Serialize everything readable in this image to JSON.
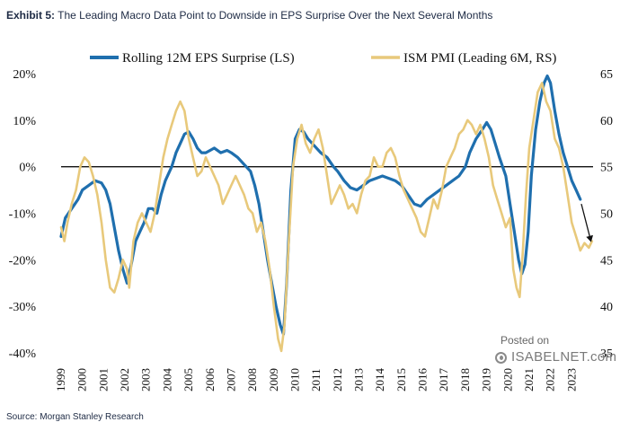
{
  "header": {
    "exhibit_label": "Exhibit 5:",
    "title": "The Leading Macro Data Point to Downside in EPS Surprise Over the Next Several Months"
  },
  "source": "Source: Morgan Stanley Research",
  "watermark": {
    "posted": "Posted on",
    "site": "ISABELNET.com"
  },
  "chart_data": {
    "type": "line",
    "title": "The Leading Macro Data Point to Downside in EPS Surprise Over the Next Several Months",
    "x_tick_labels": [
      "1999",
      "2000",
      "2001",
      "2002",
      "2003",
      "2004",
      "2005",
      "2006",
      "2007",
      "2008",
      "2009",
      "2010",
      "2011",
      "2012",
      "2013",
      "2014",
      "2015",
      "2016",
      "2017",
      "2018",
      "2019",
      "2020",
      "2021",
      "2022",
      "2023"
    ],
    "x_range": [
      1999.0,
      2024.0
    ],
    "left_axis": {
      "label": "Rolling 12M EPS Surprise (LS)",
      "range": [
        -40,
        20
      ],
      "ticks": [
        20,
        10,
        0,
        -10,
        -20,
        -30,
        -40
      ],
      "tick_labels": [
        "20%",
        "10%",
        "0%",
        "-10%",
        "-20%",
        "-30%",
        "-40%"
      ]
    },
    "right_axis": {
      "label": "ISM PMI (Leading 6M, RS)",
      "range": [
        35,
        65
      ],
      "ticks": [
        65,
        60,
        55,
        50,
        45,
        40,
        35
      ],
      "tick_labels": [
        "65",
        "60",
        "55",
        "50",
        "45",
        "40",
        "35"
      ]
    },
    "reference_line": {
      "axis": "left",
      "value": 0
    },
    "legend_position": "top",
    "arrow_annotation": {
      "from": [
        2023.45,
        -8
      ],
      "to": [
        2023.9,
        -16
      ],
      "meaning": "projected downside in EPS surprise"
    },
    "series": [
      {
        "name": "Rolling 12M EPS Surprise (LS)",
        "axis": "left",
        "color": "#1f6fae",
        "points": [
          [
            1999.0,
            -15
          ],
          [
            1999.2,
            -11
          ],
          [
            1999.5,
            -9
          ],
          [
            1999.8,
            -7
          ],
          [
            2000.0,
            -5
          ],
          [
            2000.3,
            -4
          ],
          [
            2000.6,
            -3
          ],
          [
            2000.9,
            -3.5
          ],
          [
            2001.1,
            -5
          ],
          [
            2001.3,
            -8
          ],
          [
            2001.5,
            -13
          ],
          [
            2001.7,
            -18
          ],
          [
            2001.9,
            -22
          ],
          [
            2002.1,
            -25
          ],
          [
            2002.3,
            -21
          ],
          [
            2002.5,
            -16
          ],
          [
            2002.7,
            -14
          ],
          [
            2002.9,
            -12
          ],
          [
            2003.1,
            -9
          ],
          [
            2003.3,
            -9
          ],
          [
            2003.5,
            -10
          ],
          [
            2003.7,
            -6
          ],
          [
            2003.9,
            -3
          ],
          [
            2004.2,
            0
          ],
          [
            2004.4,
            3
          ],
          [
            2004.6,
            5
          ],
          [
            2004.8,
            7
          ],
          [
            2005.0,
            7.5
          ],
          [
            2005.2,
            6
          ],
          [
            2005.4,
            4
          ],
          [
            2005.6,
            3
          ],
          [
            2005.8,
            3
          ],
          [
            2006.0,
            3.5
          ],
          [
            2006.2,
            4
          ],
          [
            2006.5,
            3
          ],
          [
            2006.8,
            3.5
          ],
          [
            2007.0,
            3
          ],
          [
            2007.3,
            2
          ],
          [
            2007.6,
            0.5
          ],
          [
            2007.9,
            -1
          ],
          [
            2008.1,
            -4
          ],
          [
            2008.3,
            -8
          ],
          [
            2008.5,
            -14
          ],
          [
            2008.7,
            -20
          ],
          [
            2008.9,
            -25
          ],
          [
            2009.1,
            -30
          ],
          [
            2009.3,
            -34
          ],
          [
            2009.45,
            -36
          ],
          [
            2009.6,
            -25
          ],
          [
            2009.8,
            -5
          ],
          [
            2010.0,
            6
          ],
          [
            2010.2,
            8
          ],
          [
            2010.4,
            7.5
          ],
          [
            2010.6,
            6
          ],
          [
            2010.9,
            4.5
          ],
          [
            2011.2,
            3
          ],
          [
            2011.5,
            2
          ],
          [
            2011.8,
            0
          ],
          [
            2012.0,
            -1
          ],
          [
            2012.3,
            -3
          ],
          [
            2012.6,
            -4.5
          ],
          [
            2012.9,
            -5
          ],
          [
            2013.2,
            -4
          ],
          [
            2013.5,
            -3
          ],
          [
            2013.8,
            -2.5
          ],
          [
            2014.1,
            -2
          ],
          [
            2014.4,
            -2.5
          ],
          [
            2014.7,
            -3
          ],
          [
            2015.0,
            -4
          ],
          [
            2015.3,
            -6
          ],
          [
            2015.6,
            -8
          ],
          [
            2015.9,
            -8.5
          ],
          [
            2016.2,
            -7
          ],
          [
            2016.5,
            -6
          ],
          [
            2016.8,
            -5
          ],
          [
            2017.1,
            -4
          ],
          [
            2017.4,
            -3
          ],
          [
            2017.7,
            -2
          ],
          [
            2018.0,
            0
          ],
          [
            2018.2,
            3
          ],
          [
            2018.5,
            6
          ],
          [
            2018.8,
            8
          ],
          [
            2019.0,
            9.5
          ],
          [
            2019.2,
            8
          ],
          [
            2019.4,
            5
          ],
          [
            2019.6,
            2
          ],
          [
            2019.9,
            -2
          ],
          [
            2020.1,
            -8
          ],
          [
            2020.3,
            -14
          ],
          [
            2020.5,
            -20
          ],
          [
            2020.65,
            -23
          ],
          [
            2020.8,
            -21
          ],
          [
            2020.95,
            -14
          ],
          [
            2021.1,
            -2
          ],
          [
            2021.3,
            8
          ],
          [
            2021.5,
            14
          ],
          [
            2021.7,
            18
          ],
          [
            2021.85,
            19.5
          ],
          [
            2022.0,
            18
          ],
          [
            2022.2,
            12
          ],
          [
            2022.4,
            7
          ],
          [
            2022.6,
            3
          ],
          [
            2022.8,
            0
          ],
          [
            2023.0,
            -3
          ],
          [
            2023.2,
            -5
          ],
          [
            2023.4,
            -7
          ]
        ]
      },
      {
        "name": "ISM PMI (Leading 6M, RS)",
        "axis": "right",
        "color": "#e8c97b",
        "points": [
          [
            1999.0,
            48.5
          ],
          [
            1999.15,
            47
          ],
          [
            1999.3,
            49
          ],
          [
            1999.5,
            51
          ],
          [
            1999.7,
            52.5
          ],
          [
            1999.9,
            55
          ],
          [
            2000.1,
            56
          ],
          [
            2000.3,
            55.5
          ],
          [
            2000.5,
            54
          ],
          [
            2000.7,
            52
          ],
          [
            2000.9,
            49
          ],
          [
            2001.1,
            45
          ],
          [
            2001.3,
            42
          ],
          [
            2001.5,
            41.5
          ],
          [
            2001.7,
            43
          ],
          [
            2001.9,
            45
          ],
          [
            2002.1,
            44
          ],
          [
            2002.2,
            42
          ],
          [
            2002.4,
            47
          ],
          [
            2002.6,
            49
          ],
          [
            2002.8,
            50
          ],
          [
            2003.0,
            49
          ],
          [
            2003.2,
            48
          ],
          [
            2003.4,
            50
          ],
          [
            2003.6,
            53
          ],
          [
            2003.8,
            56
          ],
          [
            2004.0,
            58
          ],
          [
            2004.2,
            59.5
          ],
          [
            2004.4,
            61
          ],
          [
            2004.6,
            62
          ],
          [
            2004.8,
            61
          ],
          [
            2005.0,
            58
          ],
          [
            2005.2,
            56
          ],
          [
            2005.4,
            54
          ],
          [
            2005.6,
            54.5
          ],
          [
            2005.8,
            56
          ],
          [
            2006.0,
            55
          ],
          [
            2006.2,
            54
          ],
          [
            2006.4,
            53
          ],
          [
            2006.6,
            51
          ],
          [
            2006.8,
            52
          ],
          [
            2007.0,
            53
          ],
          [
            2007.2,
            54
          ],
          [
            2007.4,
            53
          ],
          [
            2007.6,
            52
          ],
          [
            2007.8,
            50.5
          ],
          [
            2008.0,
            50
          ],
          [
            2008.2,
            48
          ],
          [
            2008.4,
            49
          ],
          [
            2008.6,
            47
          ],
          [
            2008.8,
            44
          ],
          [
            2009.0,
            40
          ],
          [
            2009.2,
            36.5
          ],
          [
            2009.35,
            35.2
          ],
          [
            2009.5,
            38
          ],
          [
            2009.7,
            47
          ],
          [
            2009.9,
            55
          ],
          [
            2010.1,
            58
          ],
          [
            2010.3,
            59.5
          ],
          [
            2010.5,
            57.5
          ],
          [
            2010.7,
            56.5
          ],
          [
            2010.9,
            58
          ],
          [
            2011.1,
            59
          ],
          [
            2011.3,
            57
          ],
          [
            2011.5,
            54
          ],
          [
            2011.7,
            51
          ],
          [
            2011.9,
            52
          ],
          [
            2012.1,
            53
          ],
          [
            2012.3,
            52
          ],
          [
            2012.5,
            50.5
          ],
          [
            2012.7,
            51
          ],
          [
            2012.9,
            50
          ],
          [
            2013.1,
            52
          ],
          [
            2013.3,
            53.5
          ],
          [
            2013.5,
            54
          ],
          [
            2013.7,
            56
          ],
          [
            2013.9,
            55
          ],
          [
            2014.1,
            55
          ],
          [
            2014.3,
            56.5
          ],
          [
            2014.5,
            57
          ],
          [
            2014.7,
            56
          ],
          [
            2014.9,
            54
          ],
          [
            2015.1,
            52.5
          ],
          [
            2015.3,
            51.5
          ],
          [
            2015.5,
            50.5
          ],
          [
            2015.7,
            49.5
          ],
          [
            2015.9,
            48
          ],
          [
            2016.1,
            47.5
          ],
          [
            2016.3,
            49.5
          ],
          [
            2016.5,
            51.5
          ],
          [
            2016.7,
            50.5
          ],
          [
            2016.9,
            52.5
          ],
          [
            2017.1,
            55
          ],
          [
            2017.3,
            56
          ],
          [
            2017.5,
            57
          ],
          [
            2017.7,
            58.5
          ],
          [
            2017.9,
            59
          ],
          [
            2018.1,
            60
          ],
          [
            2018.3,
            59.5
          ],
          [
            2018.5,
            58.5
          ],
          [
            2018.7,
            59.5
          ],
          [
            2018.9,
            58
          ],
          [
            2019.1,
            56
          ],
          [
            2019.3,
            53
          ],
          [
            2019.5,
            51.5
          ],
          [
            2019.7,
            50
          ],
          [
            2019.9,
            48.5
          ],
          [
            2020.1,
            49.5
          ],
          [
            2020.25,
            44
          ],
          [
            2020.4,
            42
          ],
          [
            2020.55,
            41
          ],
          [
            2020.7,
            46
          ],
          [
            2020.85,
            52
          ],
          [
            2021.0,
            57
          ],
          [
            2021.2,
            60
          ],
          [
            2021.4,
            63
          ],
          [
            2021.6,
            64
          ],
          [
            2021.8,
            62
          ],
          [
            2022.0,
            61
          ],
          [
            2022.2,
            58
          ],
          [
            2022.4,
            57
          ],
          [
            2022.6,
            55
          ],
          [
            2022.8,
            52
          ],
          [
            2023.0,
            49
          ],
          [
            2023.2,
            47.5
          ],
          [
            2023.4,
            46
          ],
          [
            2023.6,
            46.8
          ],
          [
            2023.8,
            46.3
          ],
          [
            2023.95,
            47
          ]
        ]
      }
    ]
  }
}
